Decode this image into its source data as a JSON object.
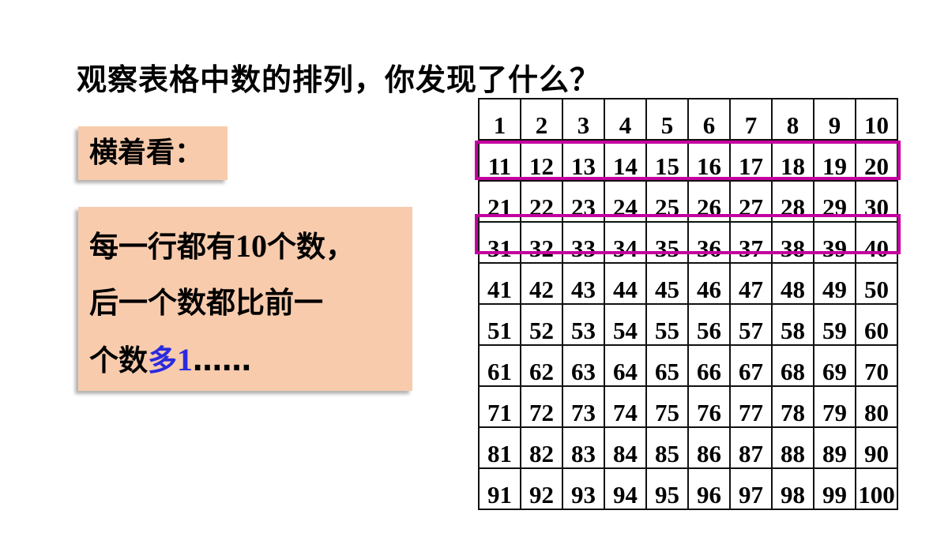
{
  "title": "观察表格中数的排列，你发现了什么？",
  "label_box": "横着看：",
  "observation": {
    "line1_a": "每一行都有",
    "line1_num": "10",
    "line1_b": "个数，",
    "line2": "后一个数都比前一",
    "line3_a": "个数",
    "line3_highlight": "多",
    "line3_num": "1",
    "line3_b": "……"
  },
  "highlight_color": "#c4009e",
  "panel_color": "#f8cbad",
  "highlighted_rows": [
    2,
    4
  ],
  "grid": [
    [
      "1",
      "2",
      "3",
      "4",
      "5",
      "6",
      "7",
      "8",
      "9",
      "10"
    ],
    [
      "11",
      "12",
      "13",
      "14",
      "15",
      "16",
      "17",
      "18",
      "19",
      "20"
    ],
    [
      "21",
      "22",
      "23",
      "24",
      "25",
      "26",
      "27",
      "28",
      "29",
      "30"
    ],
    [
      "31",
      "32",
      "33",
      "34",
      "35",
      "36",
      "37",
      "38",
      "39",
      "40"
    ],
    [
      "41",
      "42",
      "43",
      "44",
      "45",
      "46",
      "47",
      "48",
      "49",
      "50"
    ],
    [
      "51",
      "52",
      "53",
      "54",
      "55",
      "56",
      "57",
      "58",
      "59",
      "60"
    ],
    [
      "61",
      "62",
      "63",
      "64",
      "65",
      "66",
      "67",
      "68",
      "69",
      "70"
    ],
    [
      "71",
      "72",
      "73",
      "74",
      "75",
      "76",
      "77",
      "78",
      "79",
      "80"
    ],
    [
      "81",
      "82",
      "83",
      "84",
      "85",
      "86",
      "87",
      "88",
      "89",
      "90"
    ],
    [
      "91",
      "92",
      "93",
      "94",
      "95",
      "96",
      "97",
      "98",
      "99",
      "100"
    ]
  ]
}
